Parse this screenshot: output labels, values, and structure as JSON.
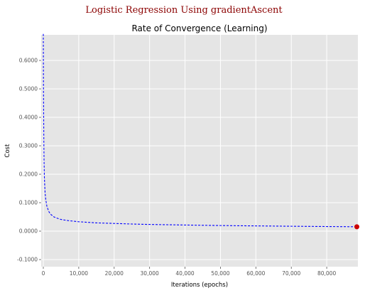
{
  "chart_data": {
    "type": "line",
    "suptitle": "Logistic Regression Using gradientAscent",
    "title": "Rate of Convergence (Learning)",
    "xlabel": "Iterations (epochs)",
    "ylabel": "Cost",
    "xlim": [
      -600,
      88800
    ],
    "ylim": [
      -0.125,
      0.69
    ],
    "x_ticks": [
      0,
      10000,
      20000,
      30000,
      40000,
      50000,
      60000,
      70000,
      80000
    ],
    "x_tick_labels": [
      "0",
      "10,000",
      "20,000",
      "30,000",
      "40,000",
      "50,000",
      "60,000",
      "70,000",
      "80,000"
    ],
    "y_ticks": [
      -0.1,
      0.0,
      0.1,
      0.2,
      0.3,
      0.4,
      0.5,
      0.6
    ],
    "y_tick_labels": [
      "-0.1000",
      "0.0000",
      "0.1000",
      "0.2000",
      "0.3000",
      "0.4000",
      "0.5000",
      "0.6000"
    ],
    "grid": true,
    "series": [
      {
        "color": "#0000ff",
        "style": "dashed",
        "x": [
          0,
          50,
          100,
          150,
          200,
          300,
          400,
          500,
          700,
          1000,
          1500,
          2000,
          3000,
          4000,
          5000,
          7000,
          10000,
          15000,
          20000,
          25000,
          30000,
          35000,
          40000,
          45000,
          50000,
          55000,
          60000,
          65000,
          70000,
          75000,
          80000,
          85000,
          88500
        ],
        "y": [
          0.693,
          0.5,
          0.4,
          0.31,
          0.25,
          0.19,
          0.16,
          0.135,
          0.11,
          0.088,
          0.07,
          0.06,
          0.05,
          0.045,
          0.041,
          0.037,
          0.033,
          0.029,
          0.027,
          0.025,
          0.0235,
          0.0225,
          0.0215,
          0.0205,
          0.0197,
          0.019,
          0.0184,
          0.0178,
          0.0172,
          0.0167,
          0.0162,
          0.0157,
          0.0154
        ]
      }
    ],
    "final_point": {
      "x": 88500,
      "y": 0.0154,
      "color": "#cc0000"
    }
  }
}
